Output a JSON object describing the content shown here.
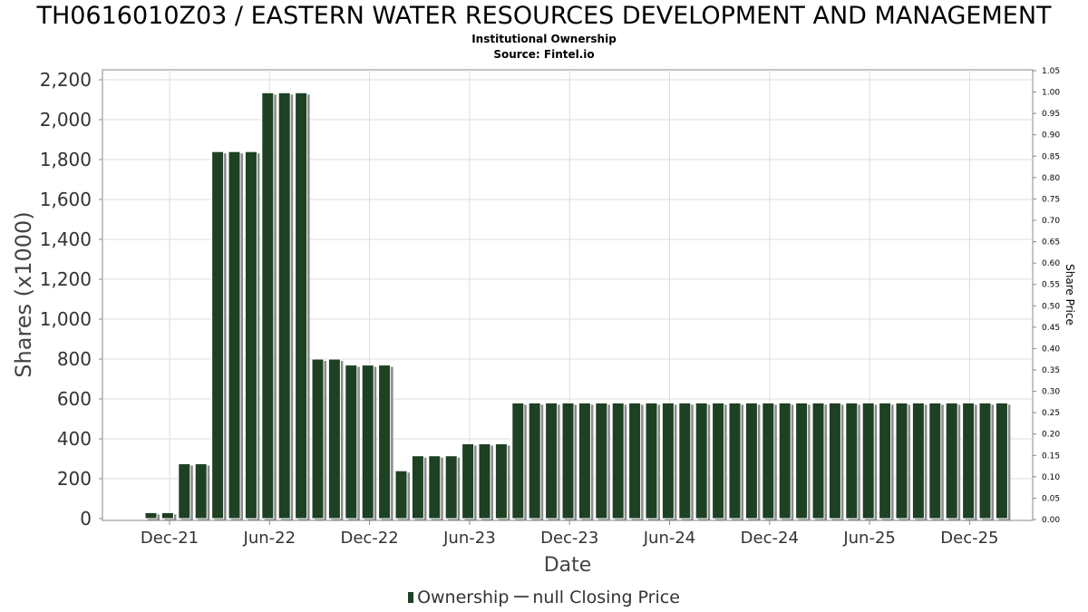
{
  "title": "TH0616010Z03 / EASTERN WATER RESOURCES DEVELOPMENT AND MANAGEMENT",
  "subtitle": "Institutional Ownership",
  "source": "Source: Fintel.io",
  "legend": {
    "ownership": "Ownership",
    "price": "null Closing Price"
  },
  "colors": {
    "bar": "#1e4023",
    "shadow": "#8a8a8a",
    "grid": "#dddddd",
    "axis": "#888888"
  },
  "chart_data": {
    "type": "bar",
    "title": "TH0616010Z03 / EASTERN WATER RESOURCES DEVELOPMENT AND MANAGEMENT",
    "xlabel": "Date",
    "ylabel": "Shares (x1000)",
    "y2label": "Share Price",
    "ylim": [
      0,
      2250
    ],
    "y2lim": [
      0,
      1.05
    ],
    "yticks": [
      "0",
      "200",
      "400",
      "600",
      "800",
      "1,000",
      "1,200",
      "1,400",
      "1,600",
      "1,800",
      "2,000",
      "2,200"
    ],
    "y2ticks": [
      "0.00",
      "0.05",
      "0.10",
      "0.15",
      "0.20",
      "0.25",
      "0.30",
      "0.35",
      "0.40",
      "0.45",
      "0.50",
      "0.55",
      "0.60",
      "0.65",
      "0.70",
      "0.75",
      "0.80",
      "0.85",
      "0.90",
      "0.95",
      "1.00",
      "1.05"
    ],
    "xticks": [
      "Dec-21",
      "Jun-22",
      "Dec-22",
      "Jun-23",
      "Dec-23",
      "Jun-24",
      "Dec-24",
      "Jun-25",
      "Dec-25"
    ],
    "grid": true,
    "legend_position": "bottom",
    "values": [
      30,
      30,
      275,
      275,
      1840,
      1840,
      1840,
      2135,
      2135,
      2135,
      800,
      800,
      770,
      770,
      770,
      240,
      315,
      315,
      315,
      375,
      375,
      375,
      580,
      580,
      580,
      580,
      580,
      580,
      580,
      580,
      580,
      580,
      580,
      580,
      580,
      580,
      580,
      580,
      580,
      580,
      580,
      580,
      580,
      580,
      580,
      580,
      580,
      580,
      580,
      580,
      580,
      580
    ]
  }
}
